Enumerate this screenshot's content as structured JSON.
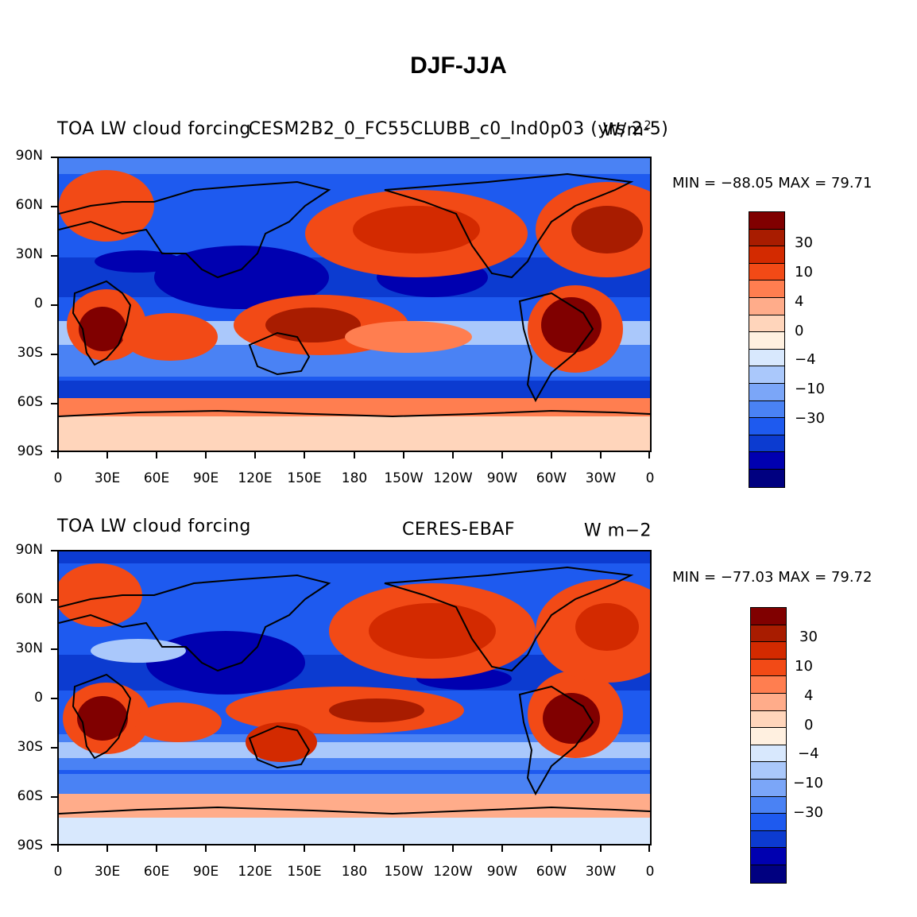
{
  "page": {
    "title": "DJF-JJA"
  },
  "colors": {
    "levels": [
      "#000080",
      "#0000b0",
      "#0c3bd0",
      "#1e5aef",
      "#4a82f4",
      "#7ba6f8",
      "#aac8fb",
      "#d8e8fd",
      "#fff0e0",
      "#ffd5bb",
      "#ffac8a",
      "#ff7e50",
      "#f24a16",
      "#d32a00",
      "#a81c00",
      "#800000"
    ],
    "coast": "#000000"
  },
  "colorbar": {
    "labels": [
      "30",
      "10",
      "4",
      "0",
      "−4",
      "−10",
      "−30"
    ]
  },
  "axes": {
    "lat_labels": [
      "90N",
      "60N",
      "30N",
      "0",
      "30S",
      "60S",
      "90S"
    ],
    "lon_labels": [
      "0",
      "30E",
      "60E",
      "90E",
      "120E",
      "150E",
      "180",
      "150W",
      "120W",
      "90W",
      "60W",
      "30W",
      "0"
    ]
  },
  "panels": [
    {
      "left_title": "TOA LW cloud forcing",
      "center_title": "CESM2B2_0_FC55CLUBB_c0_lnd0p03 (yrs 2-5)",
      "units_base": "W/m",
      "units_sup": "2",
      "min_label": "MIN =",
      "min_value": "−88.05",
      "max_label": "MAX =",
      "max_value": "79.71"
    },
    {
      "left_title": "TOA LW cloud forcing",
      "center_title": "CERES-EBAF",
      "units_base": "W m−2",
      "units_sup": "",
      "min_label": "MIN =",
      "min_value": "−77.03",
      "max_label": "MAX =",
      "max_value": "79.72"
    }
  ]
}
